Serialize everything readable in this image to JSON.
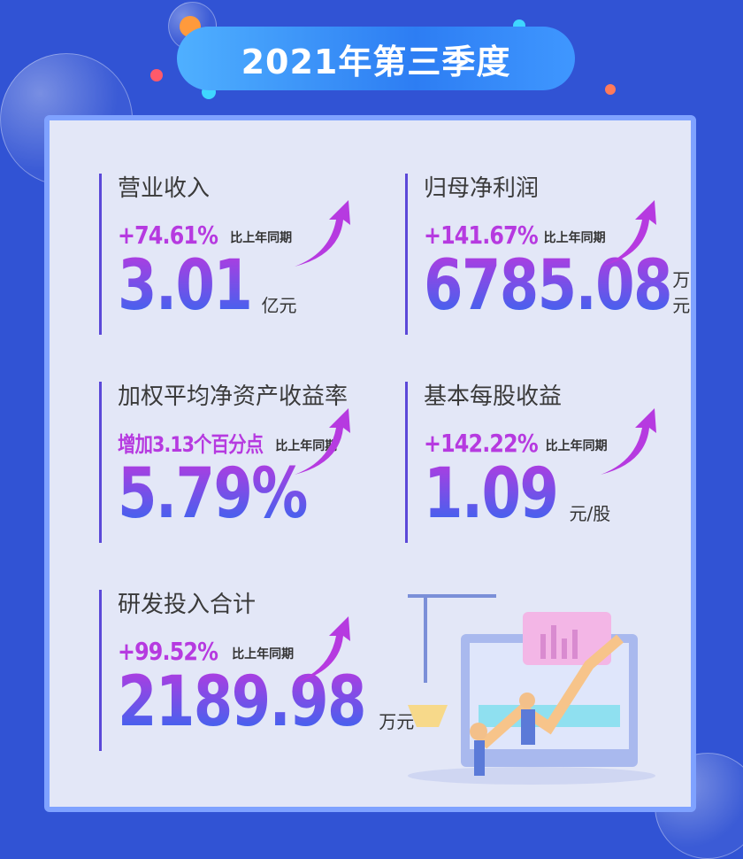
{
  "header": {
    "title": "2021年第三季度"
  },
  "yoy_label": "比上年同期",
  "metrics": [
    {
      "title": "营业收入",
      "change": "+74.61%",
      "value": "3.01",
      "unit": "亿元"
    },
    {
      "title": "归母净利润",
      "change": "+141.67%",
      "value": "6785.08",
      "unit": "万元"
    },
    {
      "title": "加权平均净资产收益率",
      "change": "增加3.13个百分点",
      "value": "5.79%",
      "unit": ""
    },
    {
      "title": "基本每股收益",
      "change": "+142.22%",
      "value": "1.09",
      "unit": "元/股"
    },
    {
      "title": "研发投入合计",
      "change": "+99.52%",
      "value": "2189.98",
      "unit": "万元"
    }
  ],
  "colors": {
    "background": "#3153d4",
    "accent": "#b63ae0",
    "card": "#e3e7f7"
  }
}
